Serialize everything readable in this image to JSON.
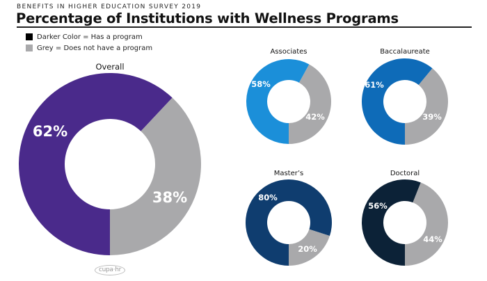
{
  "header": {
    "subtitle": "BENEFITS IN HIGHER EDUCATION SURVEY 2019",
    "title": "Percentage of Institutions with Wellness Programs"
  },
  "legend": [
    {
      "label": "Darker Color = Has a program",
      "color": "#000000"
    },
    {
      "label": "Grey = Does not have a program",
      "color": "#a9a9ab"
    }
  ],
  "logo": {
    "text": "cupa·hr"
  },
  "chart_data": [
    {
      "type": "pie",
      "title": "Overall",
      "categories": [
        "Has a program",
        "Does not have a program"
      ],
      "values": [
        62,
        38
      ],
      "labels": [
        "62%",
        "38%"
      ],
      "colors": [
        "#4a2a8b",
        "#a9a9ab"
      ]
    },
    {
      "type": "pie",
      "title": "Associates",
      "categories": [
        "Has a program",
        "Does not have a program"
      ],
      "values": [
        58,
        42
      ],
      "labels": [
        "58%",
        "42%"
      ],
      "colors": [
        "#1b8fd9",
        "#a9a9ab"
      ]
    },
    {
      "type": "pie",
      "title": "Baccalaureate",
      "categories": [
        "Has a program",
        "Does not have a program"
      ],
      "values": [
        61,
        39
      ],
      "labels": [
        "61%",
        "39%"
      ],
      "colors": [
        "#0e6bb8",
        "#a9a9ab"
      ]
    },
    {
      "type": "pie",
      "title": "Master’s",
      "categories": [
        "Has a program",
        "Does not have a program"
      ],
      "values": [
        80,
        20
      ],
      "labels": [
        "80%",
        "20%"
      ],
      "colors": [
        "#0f3d6f",
        "#a9a9ab"
      ]
    },
    {
      "type": "pie",
      "title": "Doctoral",
      "categories": [
        "Has a program",
        "Does not have a program"
      ],
      "values": [
        56,
        44
      ],
      "labels": [
        "56%",
        "44%"
      ],
      "colors": [
        "#0c2237",
        "#a9a9ab"
      ]
    }
  ]
}
